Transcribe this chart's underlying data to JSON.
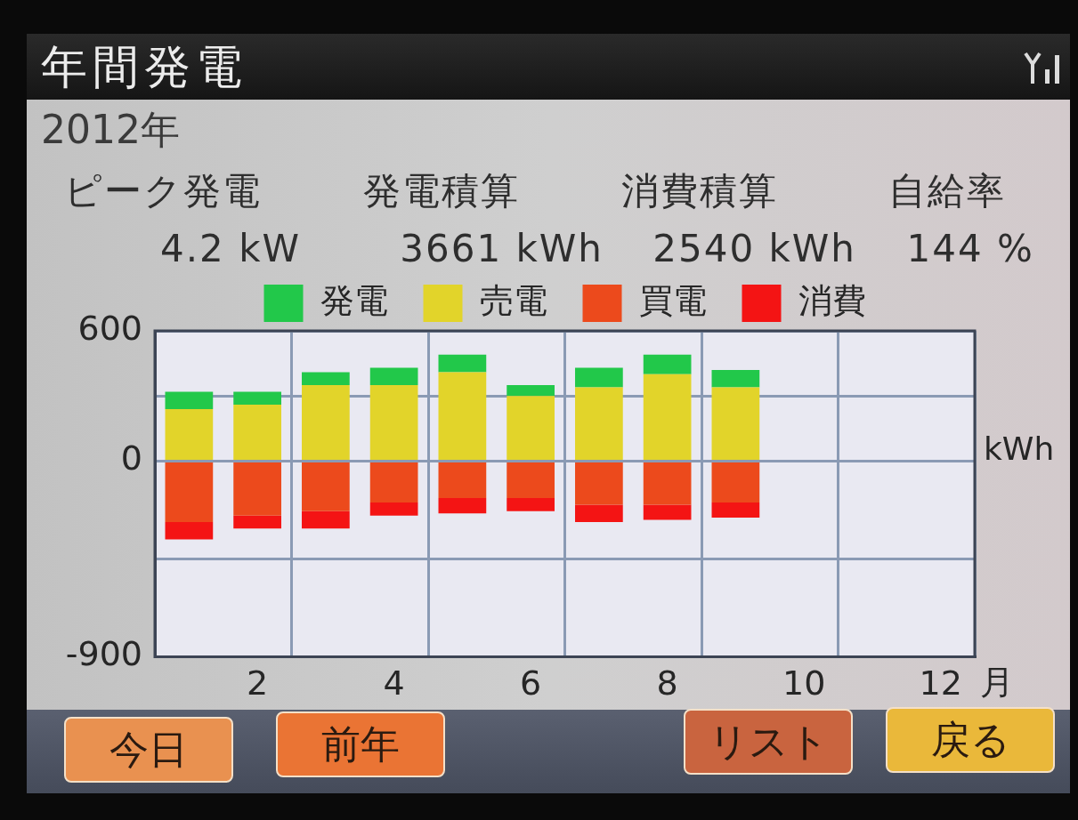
{
  "chart_data": {
    "type": "bar",
    "title": "年間発電",
    "subtitle": "2012年",
    "annotations": [
      "ピーク発電",
      "発電積算",
      "消費積算",
      "自給率",
      "4.2 kW",
      "3661 kWh",
      "2540 kWh",
      "144 %",
      "今日",
      "前年",
      "リスト",
      "戻る"
    ],
    "categories": [
      null,
      "2",
      null,
      "4",
      null,
      "6",
      null,
      "8",
      null,
      "10",
      null,
      "12"
    ],
    "xlabel": "月",
    "ylabel": "kWh",
    "stacked": true,
    "series": [
      {
        "name": "売電",
        "color": "#e2d42a",
        "values": [
          240,
          260,
          350,
          350,
          410,
          300,
          340,
          400,
          340,
          null,
          null,
          null
        ]
      },
      {
        "name": "発電",
        "color": "#22c84a",
        "values": [
          80,
          60,
          60,
          80,
          80,
          50,
          90,
          90,
          80,
          null,
          null,
          null
        ]
      },
      {
        "name": "買電",
        "color": "#ec4a1c",
        "values": [
          -280,
          -250,
          -230,
          -190,
          -170,
          -170,
          -200,
          -200,
          -190,
          null,
          null,
          null
        ]
      },
      {
        "name": "消費",
        "color": "#f41414",
        "values": [
          -80,
          -60,
          -80,
          -60,
          -70,
          -60,
          -80,
          -70,
          -70,
          null,
          null,
          null
        ]
      }
    ],
    "ylim": [
      -900,
      600
    ],
    "yticks": [
      -900,
      {
        "value": -450,
        "label": null
      },
      0,
      {
        "value": 300,
        "label": null
      },
      600
    ],
    "grid": true,
    "legend": "top"
  }
}
